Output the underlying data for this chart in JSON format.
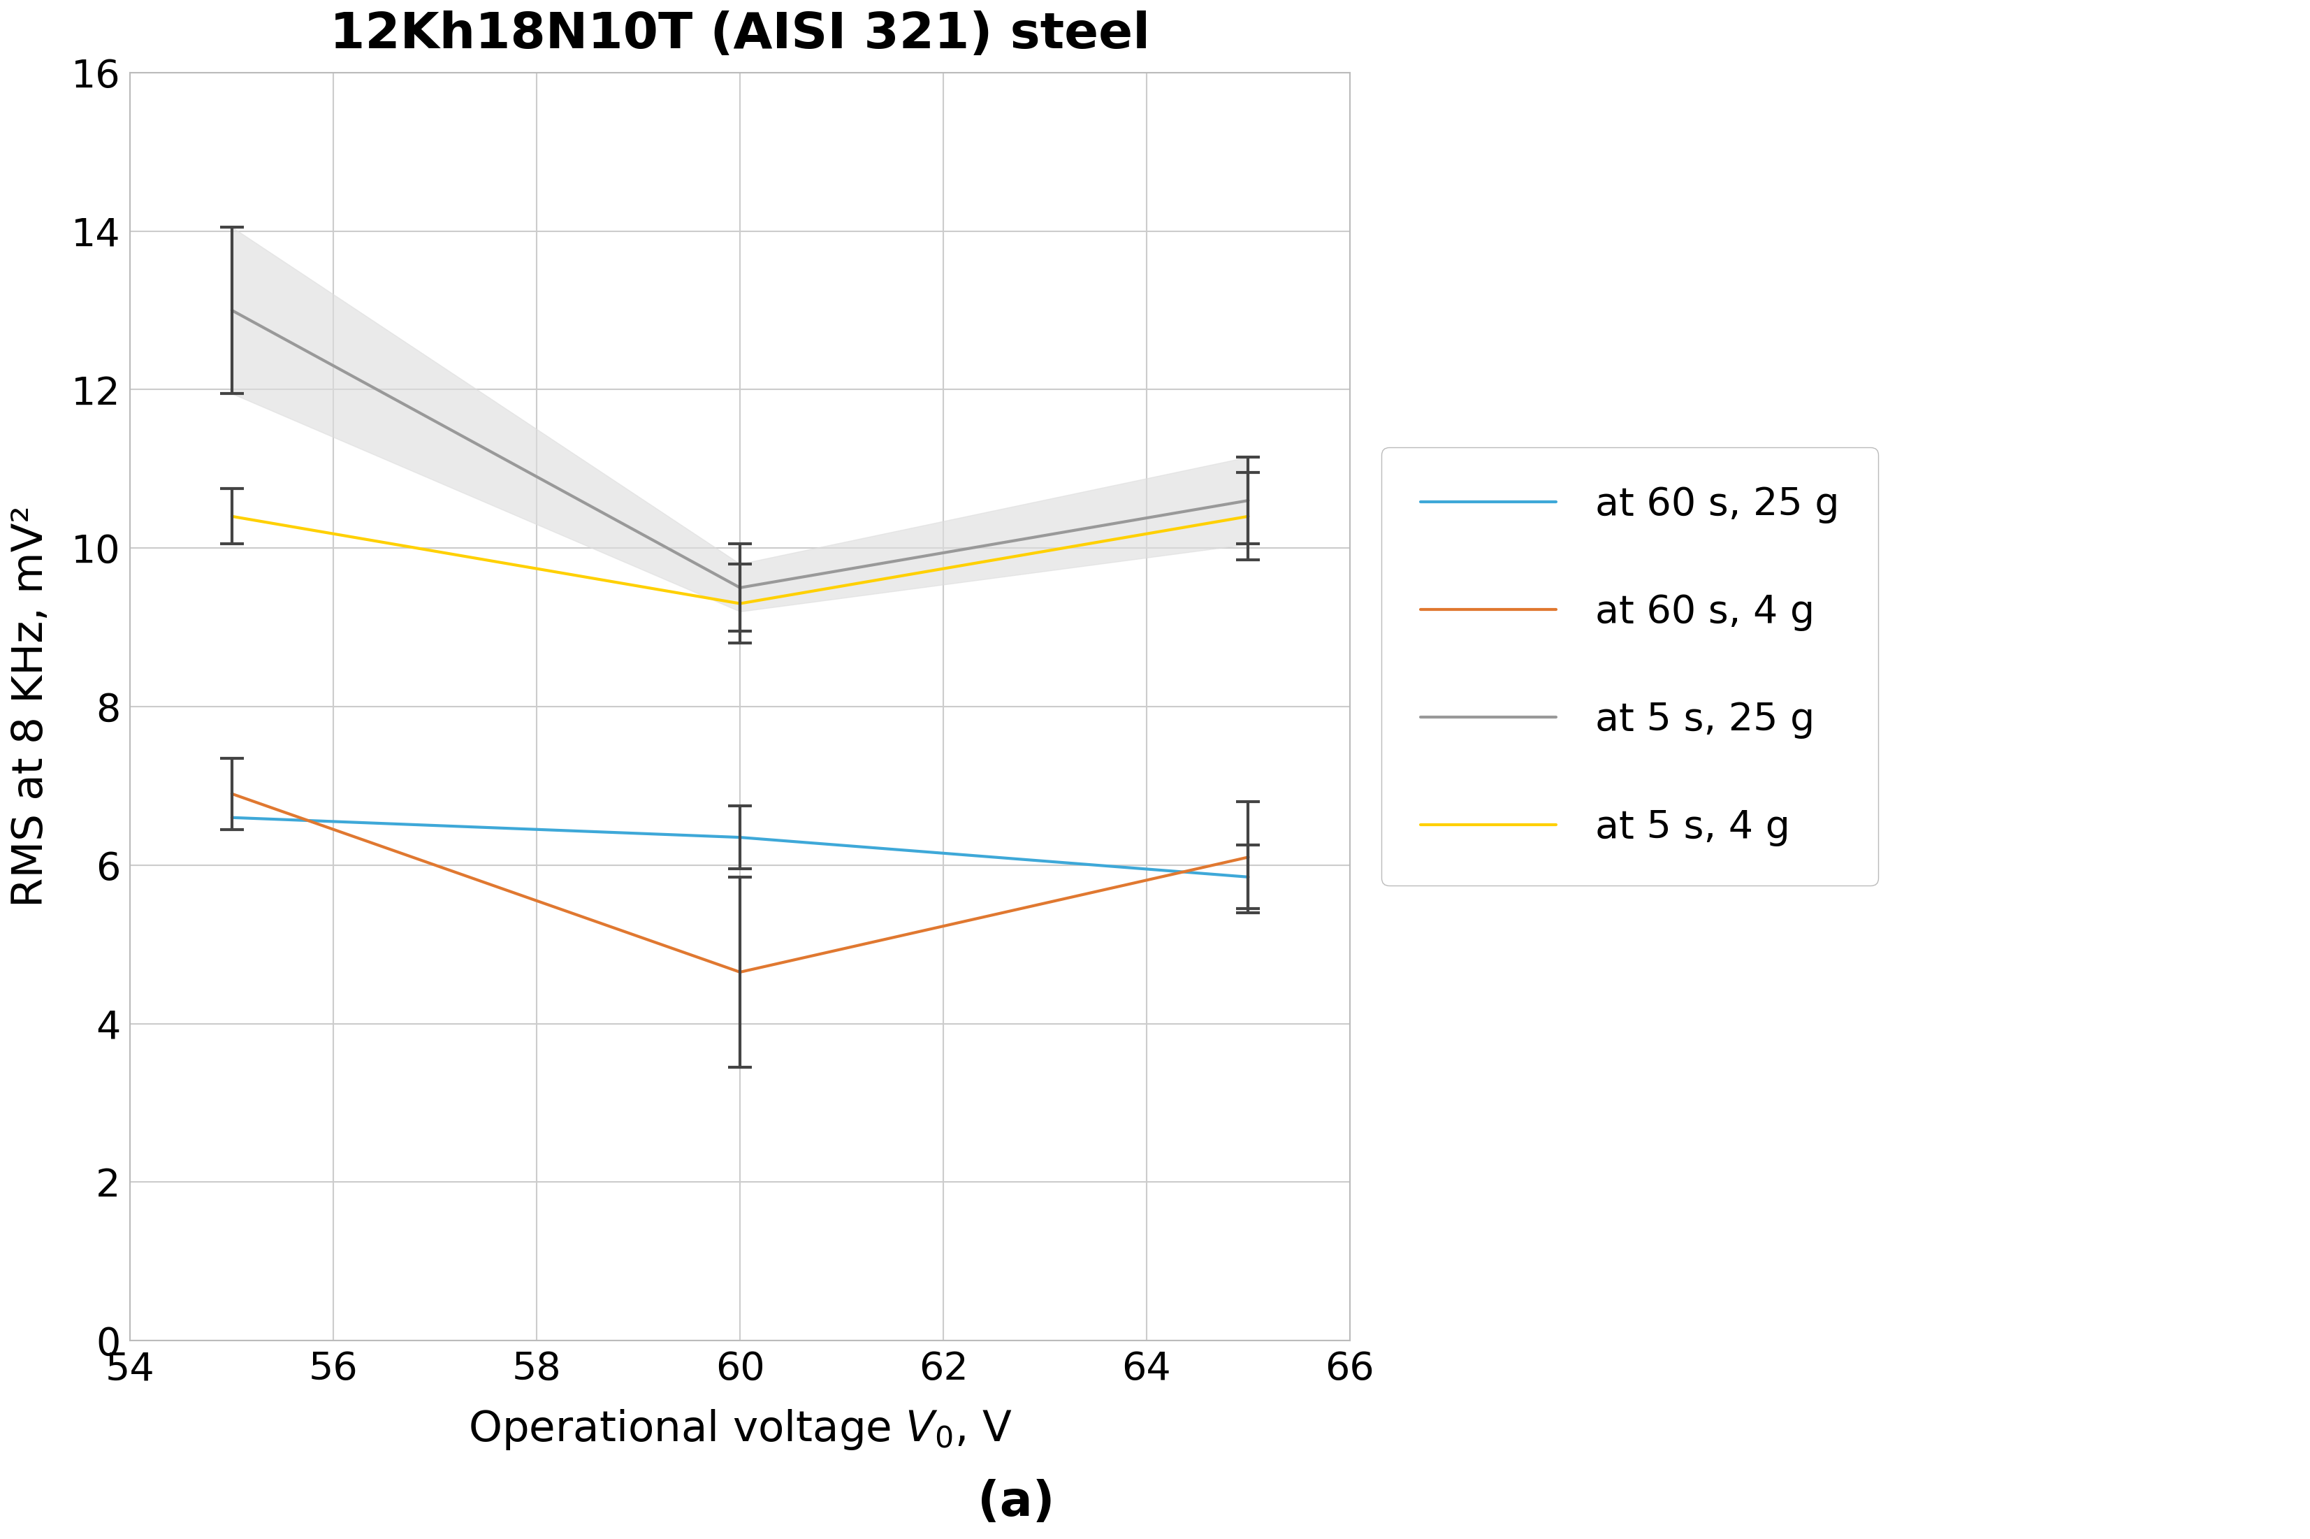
{
  "title": "12Kh18N10T (AISI 321) steel",
  "xlabel": "Operational voltage $V_0$, V",
  "ylabel": "RMS at 8 KHz, mV²",
  "caption": "(a)",
  "xlim": [
    54,
    66
  ],
  "ylim": [
    0,
    16
  ],
  "xticks": [
    54,
    56,
    58,
    60,
    62,
    64,
    66
  ],
  "yticks": [
    0,
    2,
    4,
    6,
    8,
    10,
    12,
    14,
    16
  ],
  "x_data": [
    55,
    60,
    65
  ],
  "series": [
    {
      "label": "at 60 s, 25 g",
      "color": "#3EA8D8",
      "y": [
        6.6,
        6.35,
        5.85
      ],
      "yerr": [
        null,
        null,
        null
      ],
      "linewidth": 3.0,
      "zorder": 4
    },
    {
      "label": "at 60 s, 4 g",
      "color": "#E07830",
      "y": [
        6.9,
        4.65,
        6.1
      ],
      "yerr": [
        0.45,
        null,
        0.7
      ],
      "linewidth": 3.0,
      "zorder": 4
    },
    {
      "label": "at 5 s, 25 g",
      "color": "#999999",
      "y": [
        13.0,
        9.5,
        10.6
      ],
      "yerr": [
        1.05,
        null,
        0.55
      ],
      "linewidth": 3.0,
      "fill": true,
      "fill_color": "#DDDDDD",
      "fill_alpha": 0.6,
      "zorder": 2
    },
    {
      "label": "at 5 s, 4 g",
      "color": "#FFD000",
      "y": [
        10.4,
        9.3,
        10.4
      ],
      "yerr": [
        0.35,
        null,
        0.55
      ],
      "linewidth": 3.0,
      "zorder": 3
    }
  ],
  "errorbars_at_x60": {
    "gray": {
      "y": 9.5,
      "yerr": 0.55
    },
    "yellow": {
      "y": 9.3,
      "yerr": 0.5
    },
    "blue": {
      "y": 6.35,
      "yerr": 0.45
    },
    "orange": {
      "y": 4.65,
      "yerr": 1.2
    }
  },
  "grid_color": "#CCCCCC",
  "bg_color": "#FFFFFF",
  "spine_color": "#BBBBBB",
  "title_fontsize": 52,
  "label_fontsize": 44,
  "tick_fontsize": 40,
  "legend_fontsize": 40,
  "caption_fontsize": 50,
  "errorbar_capsize": 12,
  "errorbar_capthick": 3.0,
  "errorbar_elinewidth": 3.0,
  "errorbar_color": "#444444"
}
